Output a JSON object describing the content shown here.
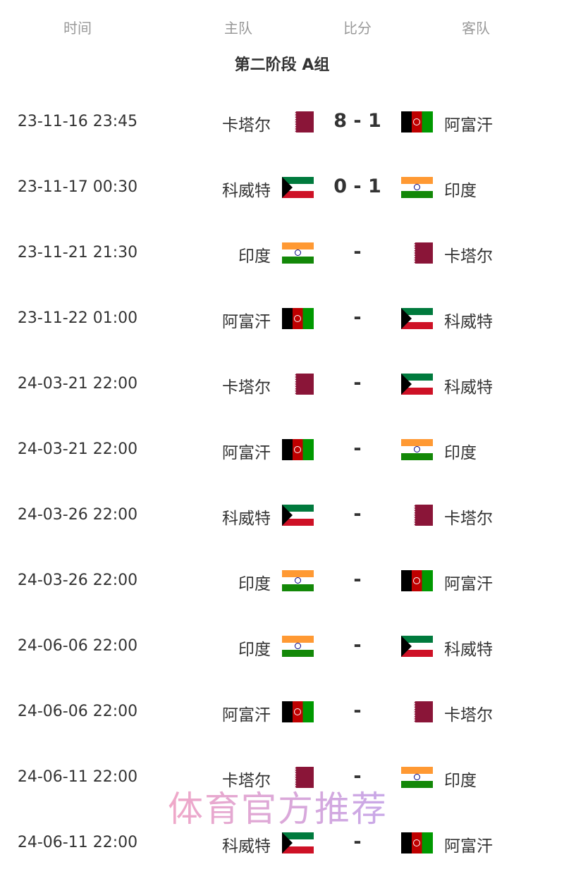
{
  "headers": {
    "time": "时间",
    "home": "主队",
    "score": "比分",
    "away": "客队"
  },
  "title": "第二阶段 A组",
  "flags": {
    "卡塔尔": "qatar",
    "阿富汗": "afg",
    "科威特": "kuw",
    "印度": "ind"
  },
  "matches": [
    {
      "time": "23-11-16 23:45",
      "home": "卡塔尔",
      "score": "8 - 1",
      "away": "阿富汗"
    },
    {
      "time": "23-11-17 00:30",
      "home": "科威特",
      "score": "0 - 1",
      "away": "印度"
    },
    {
      "time": "23-11-21 21:30",
      "home": "印度",
      "score": "-",
      "away": "卡塔尔"
    },
    {
      "time": "23-11-22 01:00",
      "home": "阿富汗",
      "score": "-",
      "away": "科威特"
    },
    {
      "time": "24-03-21 22:00",
      "home": "卡塔尔",
      "score": "-",
      "away": "科威特"
    },
    {
      "time": "24-03-21 22:00",
      "home": "阿富汗",
      "score": "-",
      "away": "印度"
    },
    {
      "time": "24-03-26 22:00",
      "home": "科威特",
      "score": "-",
      "away": "卡塔尔"
    },
    {
      "time": "24-03-26 22:00",
      "home": "印度",
      "score": "-",
      "away": "阿富汗"
    },
    {
      "time": "24-06-06 22:00",
      "home": "印度",
      "score": "-",
      "away": "科威特"
    },
    {
      "time": "24-06-06 22:00",
      "home": "阿富汗",
      "score": "-",
      "away": "卡塔尔"
    },
    {
      "time": "24-06-11 22:00",
      "home": "卡塔尔",
      "score": "-",
      "away": "印度"
    },
    {
      "time": "24-06-11 22:00",
      "home": "科威特",
      "score": "-",
      "away": "阿富汗"
    }
  ],
  "watermark": "体育官方推荐"
}
